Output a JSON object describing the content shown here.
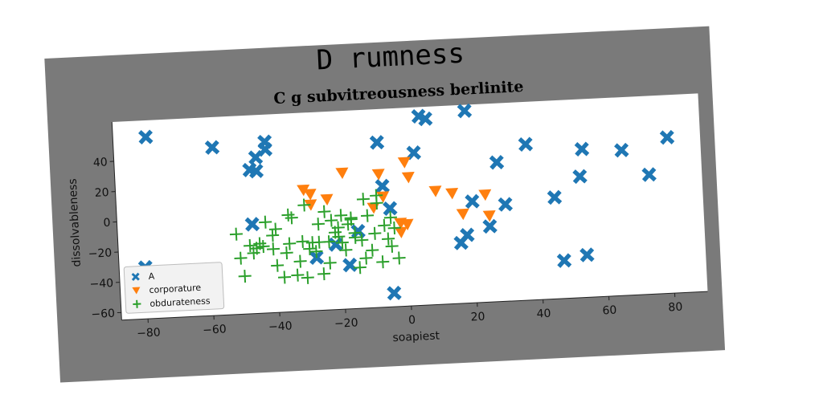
{
  "page": {
    "title": "D rumness"
  },
  "chart_data": {
    "type": "scatter",
    "title": "C g subvitreousness berlinite",
    "xlabel": "soapiest",
    "ylabel": "dissolvableness",
    "xlim": [
      -88,
      90
    ],
    "ylim": [
      -65,
      66
    ],
    "xticks": [
      -80,
      -60,
      -40,
      -20,
      0,
      20,
      40,
      60,
      80
    ],
    "yticks": [
      -60,
      -40,
      -20,
      0,
      20,
      40
    ],
    "grid": false,
    "legend_position": "lower-left",
    "series": [
      {
        "name": "A",
        "marker": "x-filled",
        "color": "#1f77b4",
        "points": [
          [
            -78,
            55
          ],
          [
            -58,
            46
          ],
          [
            -42,
            48
          ],
          [
            -42,
            43
          ],
          [
            -45,
            38
          ],
          [
            -47,
            30
          ],
          [
            -45,
            29
          ],
          [
            -80,
            -31
          ],
          [
            -47,
            -6
          ],
          [
            -28,
            -30
          ],
          [
            -22,
            -22
          ],
          [
            -15,
            -14
          ],
          [
            -18,
            -36
          ],
          [
            -8,
            44
          ],
          [
            -7,
            15
          ],
          [
            -5,
            0
          ],
          [
            -5,
            -56
          ],
          [
            3,
            36
          ],
          [
            5,
            60
          ],
          [
            7,
            58
          ],
          [
            19,
            62
          ],
          [
            20,
            2
          ],
          [
            18,
            -20
          ],
          [
            16,
            -25
          ],
          [
            25,
            -15
          ],
          [
            28,
            27
          ],
          [
            30,
            -1
          ],
          [
            37,
            38
          ],
          [
            45,
            2
          ],
          [
            47,
            -40
          ],
          [
            53,
            15
          ],
          [
            54,
            33
          ],
          [
            54,
            -37
          ],
          [
            66,
            31
          ],
          [
            74,
            14
          ],
          [
            80,
            38
          ]
        ]
      },
      {
        "name": "corporature",
        "marker": "triangle-down",
        "color": "#ff7f0e",
        "points": [
          [
            -31,
            15
          ],
          [
            -29,
            12
          ],
          [
            -29,
            5
          ],
          [
            -24,
            8
          ],
          [
            -19,
            25
          ],
          [
            -8,
            23
          ],
          [
            -7,
            8
          ],
          [
            -10,
            1
          ],
          [
            0,
            30
          ],
          [
            1,
            20
          ],
          [
            9,
            10
          ],
          [
            14,
            8
          ],
          [
            17,
            -6
          ],
          [
            24,
            6
          ],
          [
            25,
            -8
          ],
          [
            -2,
            -10
          ],
          [
            0,
            -11
          ],
          [
            -2,
            -16
          ]
        ]
      },
      {
        "name": "obdurateness",
        "marker": "plus",
        "color": "#2ca02c",
        "points": [
          [
            -52,
            -12
          ],
          [
            -51,
            -28
          ],
          [
            -50,
            -40
          ],
          [
            -48,
            -20
          ],
          [
            -46,
            -22
          ],
          [
            -44,
            -21
          ],
          [
            -43,
            -5
          ],
          [
            -41,
            -14
          ],
          [
            -40,
            -10
          ],
          [
            -40,
            -34
          ],
          [
            -38,
            -42
          ],
          [
            -37,
            -26
          ],
          [
            -36,
            -1
          ],
          [
            -36,
            -20
          ],
          [
            -35,
            -3
          ],
          [
            -34,
            -41
          ],
          [
            -33,
            -32
          ],
          [
            -32,
            -19
          ],
          [
            -31,
            -43
          ],
          [
            -31,
            5
          ],
          [
            -29,
            -20
          ],
          [
            -28,
            -26
          ],
          [
            -27,
            -20
          ],
          [
            -26,
            -41
          ],
          [
            -25,
            0
          ],
          [
            -24,
            -34
          ],
          [
            -24,
            -20
          ],
          [
            -23,
            -6
          ],
          [
            -22,
            -14
          ],
          [
            -21,
            -11
          ],
          [
            -21,
            -17
          ],
          [
            -20,
            -21
          ],
          [
            -19,
            -26
          ],
          [
            -18,
            -9
          ],
          [
            -17,
            -6
          ],
          [
            -16,
            -15
          ],
          [
            -15,
            -38
          ],
          [
            -14,
            -20
          ],
          [
            -13,
            -32
          ],
          [
            -12,
            -4
          ],
          [
            -11,
            -27
          ],
          [
            -10,
            -16
          ],
          [
            -9,
            4
          ],
          [
            -8,
            -35
          ],
          [
            -7,
            -11
          ],
          [
            -6,
            -20
          ],
          [
            -5,
            -25
          ],
          [
            -5,
            -6
          ],
          [
            -4,
            -13
          ],
          [
            -3,
            -33
          ],
          [
            -13,
            7
          ],
          [
            -9,
            9
          ],
          [
            -17,
            -5
          ],
          [
            -16,
            -18
          ],
          [
            -20,
            -3
          ],
          [
            -27,
            -8
          ],
          [
            -30,
            -24
          ],
          [
            -41,
            -23
          ],
          [
            -47,
            -25
          ],
          [
            -45,
            -19
          ]
        ]
      }
    ]
  }
}
